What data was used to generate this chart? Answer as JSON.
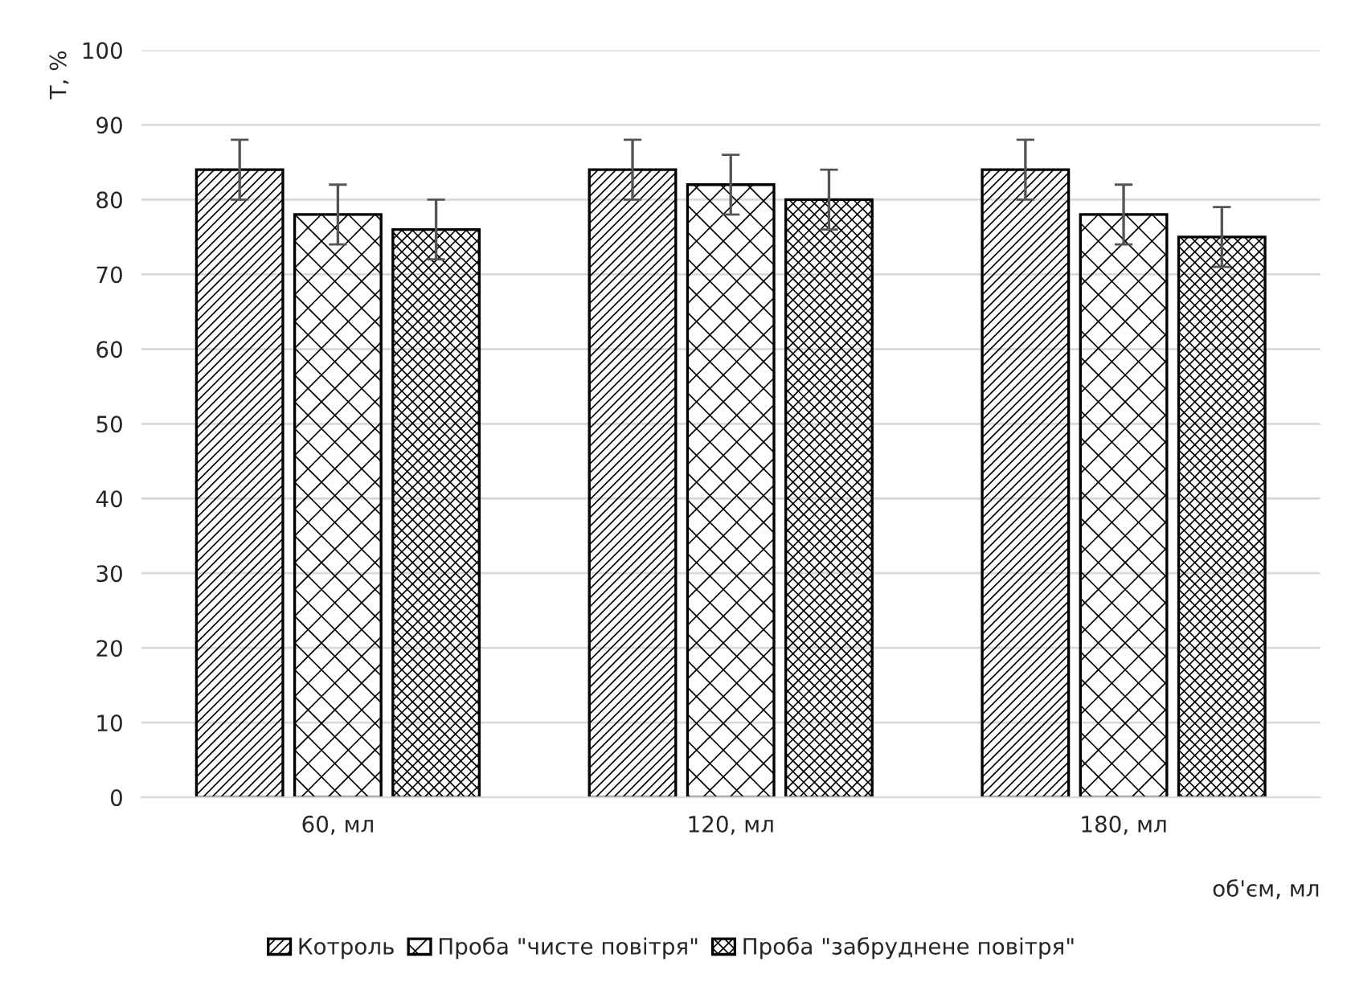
{
  "chart_data": {
    "type": "bar",
    "ylabel": "T, %",
    "xlabel": "об'єм, мл",
    "categories": [
      "60, мл",
      "120, мл",
      "180, мл"
    ],
    "series": [
      {
        "name": "Котроль",
        "color": "#000000",
        "values": [
          84,
          84,
          84
        ],
        "errors": [
          4,
          4,
          4
        ]
      },
      {
        "name": "Проба \"чисте повітря\"",
        "color": "#000000",
        "values": [
          78,
          82,
          78
        ],
        "errors": [
          4,
          4,
          4
        ]
      },
      {
        "name": "Проба \"забруднене повітря\"",
        "color": "#000000",
        "values": [
          76,
          80,
          75
        ],
        "errors": [
          4,
          4,
          4
        ]
      }
    ],
    "ylim": [
      0,
      100
    ],
    "yticks": [
      0,
      10,
      20,
      30,
      40,
      50,
      60,
      70,
      80,
      90,
      100
    ],
    "grid": "y",
    "legend": "bottom"
  }
}
